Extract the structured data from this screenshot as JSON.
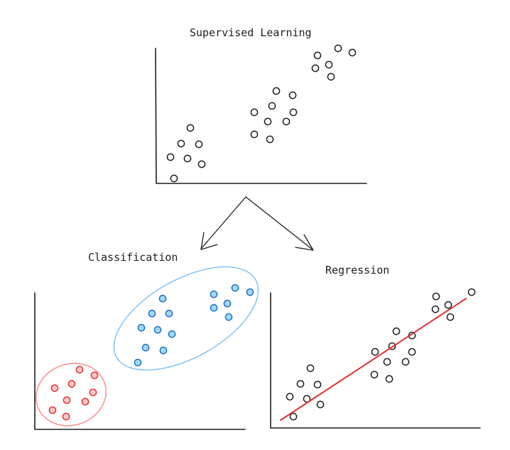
{
  "titles": {
    "top": "Supervised Learning",
    "left": "Classification",
    "right": "Regression"
  },
  "colors": {
    "ink": "#1e1e1e",
    "class_a_stroke": "#e03131",
    "class_a_fill": "#ffc9c9",
    "class_b_stroke": "#1971c2",
    "class_b_fill": "#a5d8ff",
    "regression_line": "#e03131"
  }
}
